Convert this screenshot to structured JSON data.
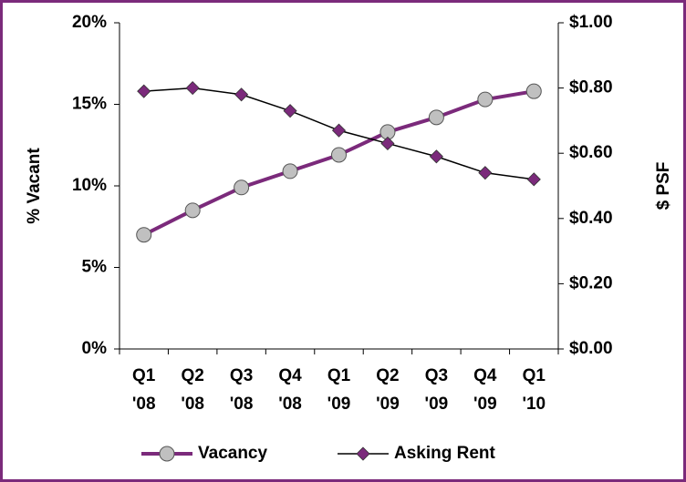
{
  "chart_data": {
    "type": "line",
    "categories": [
      "Q1\n'08",
      "Q2\n'08",
      "Q3\n'08",
      "Q4\n'08",
      "Q1\n'09",
      "Q2\n'09",
      "Q3\n'09",
      "Q4\n'09",
      "Q1\n'10"
    ],
    "y_label": "% Vacant",
    "y2_label": "$ PSF",
    "ylim": [
      0,
      20
    ],
    "yticks": [
      {
        "value": 0,
        "label": "0%"
      },
      {
        "value": 5,
        "label": "5%"
      },
      {
        "value": 10,
        "label": "10%"
      },
      {
        "value": 15,
        "label": "15%"
      },
      {
        "value": 20,
        "label": "20%"
      }
    ],
    "y2lim": [
      0,
      1
    ],
    "y2ticks": [
      {
        "value": 0,
        "label": "$0.00"
      },
      {
        "value": 0.2,
        "label": "$0.20"
      },
      {
        "value": 0.4,
        "label": "$0.40"
      },
      {
        "value": 0.6,
        "label": "$0.60"
      },
      {
        "value": 0.8,
        "label": "$0.80"
      },
      {
        "value": 1,
        "label": "$1.00"
      }
    ],
    "series": [
      {
        "name": "Vacancy",
        "color": "#7b2a7b",
        "marker_color": "#c0c0c0",
        "marker": "circle",
        "values": [
          7.0,
          8.5,
          9.9,
          10.9,
          11.9,
          13.3,
          14.2,
          15.3,
          15.8
        ]
      },
      {
        "name": "Asking Rent",
        "color": "#000000",
        "marker_color": "#7b2a7b",
        "marker": "diamond",
        "axis": "y2",
        "values": [
          0.79,
          0.8,
          0.78,
          0.73,
          0.67,
          0.63,
          0.59,
          0.54,
          0.52
        ]
      }
    ],
    "legend": "bottom",
    "frame_color": "#7b2a7b"
  }
}
